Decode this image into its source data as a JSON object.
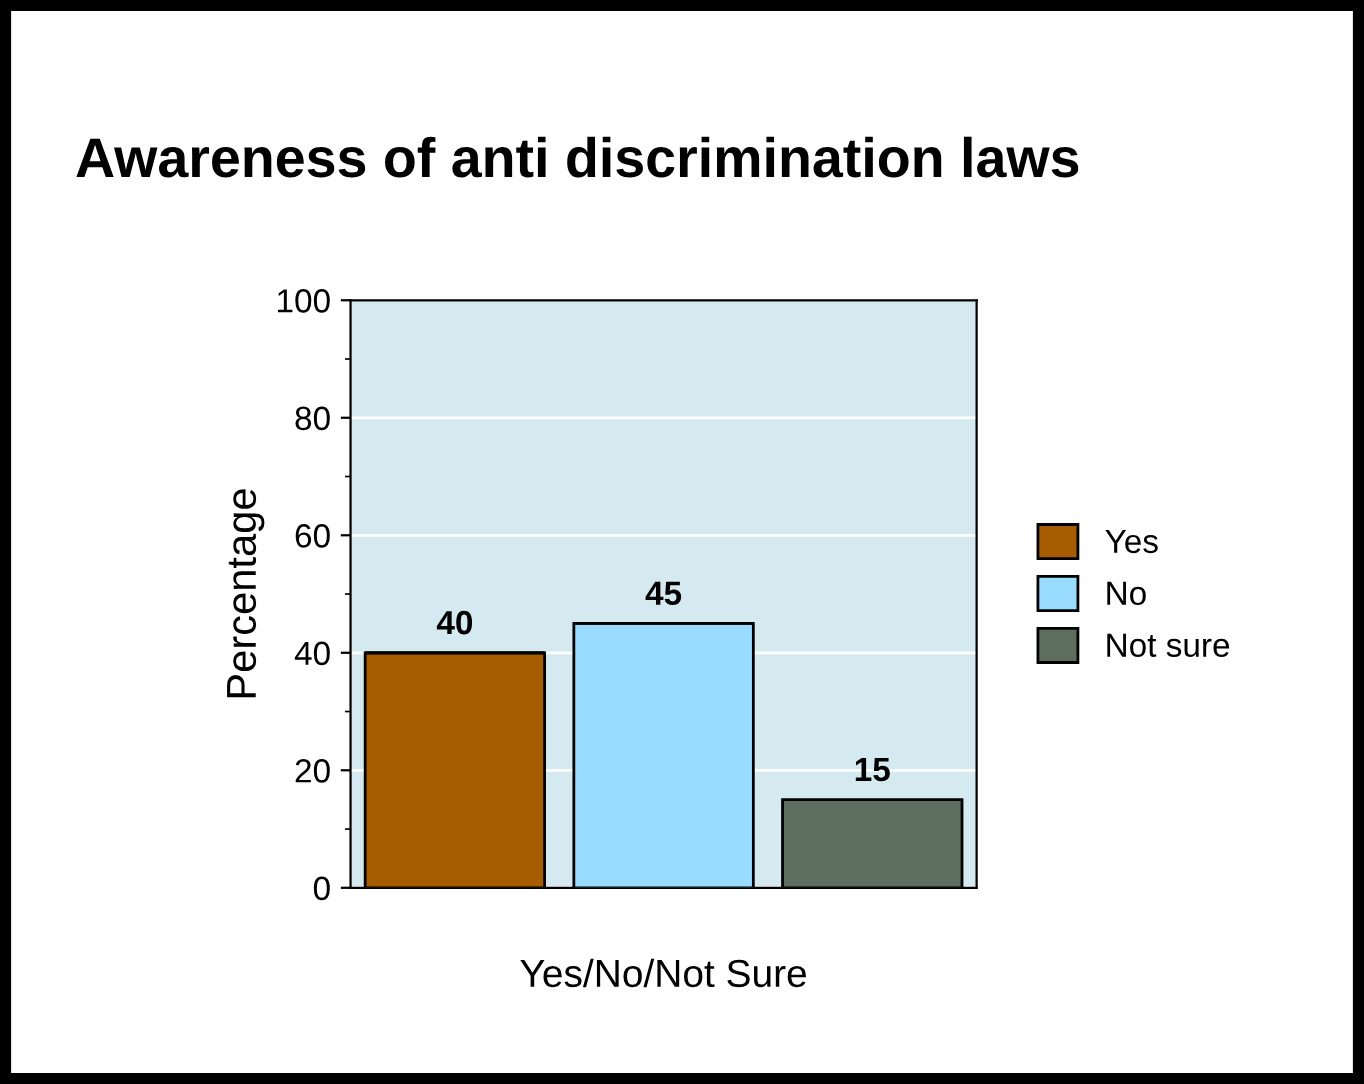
{
  "chart_data": {
    "type": "bar",
    "title": "Awareness of anti discrimination laws",
    "xlabel": "Yes/No/Not Sure",
    "ylabel": "Percentage",
    "categories": [
      null,
      null,
      null
    ],
    "series": [
      {
        "name": "Yes",
        "color": "#a65c00",
        "values": [
          40,
          null,
          null
        ]
      },
      {
        "name": "No",
        "color": "#99dcff",
        "values": [
          null,
          45,
          null
        ]
      },
      {
        "name": "Not sure",
        "color": "#5e6e5e",
        "values": [
          null,
          null,
          15
        ]
      }
    ],
    "stacked": true,
    "ylim": [
      0,
      100
    ],
    "yticks": [
      0,
      20,
      40,
      60,
      80,
      100
    ],
    "grid": "y",
    "legend": "right",
    "data_labels": true
  }
}
